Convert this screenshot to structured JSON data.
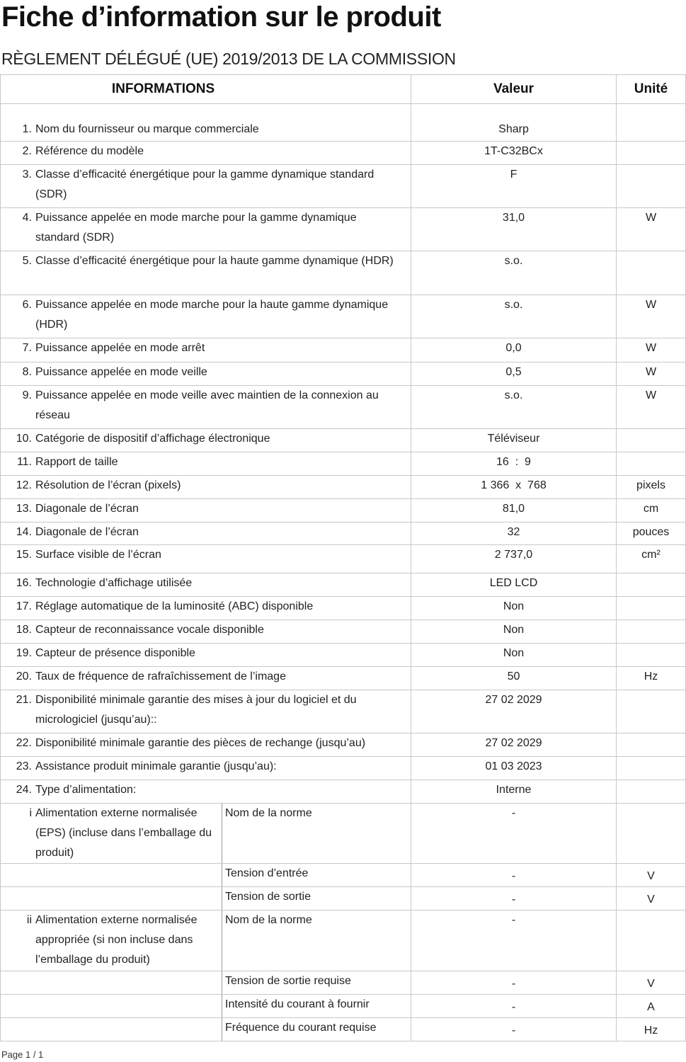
{
  "title": "Fiche d’information sur le produit",
  "subtitle": "RÈGLEMENT DÉLÉGUÉ (UE) 2019/2013 DE LA COMMISSION",
  "table": {
    "headers": {
      "info": "INFORMATIONS",
      "value": "Valeur",
      "unit": "Unité"
    },
    "rows": [
      {
        "num": "1.",
        "label": "Nom du fournisseur ou marque commerciale",
        "value": "Sharp",
        "unit": "",
        "h": 53
      },
      {
        "num": "2.",
        "label": "Référence du modèle",
        "value": "1T-C32BCx",
        "unit": ""
      },
      {
        "num": "3.",
        "label": "Classe d’efficacité énergétique pour la gamme dynamique standard (SDR)",
        "value": "F",
        "unit": ""
      },
      {
        "num": "4.",
        "label": "Puissance appelée en mode marche pour la gamme dynamique standard (SDR)",
        "value": "31,0",
        "unit": "W"
      },
      {
        "num": "5.",
        "label": "Classe d’efficacité énergétique pour la haute gamme dynamique (HDR)",
        "value": "s.o.",
        "unit": ""
      },
      {
        "num": "6.",
        "label": "Puissance appelée en mode marche pour la haute gamme dynamique (HDR)",
        "value": "s.o.",
        "unit": "W"
      },
      {
        "num": "7.",
        "label": "Puissance appelée en mode arrêt",
        "value": "0,0",
        "unit": "W"
      },
      {
        "num": "8.",
        "label": "Puissance appelée en mode veille",
        "value": "0,5",
        "unit": "W"
      },
      {
        "num": "9.",
        "label": "Puissance appelée en mode veille avec maintien de la connexion au réseau",
        "value": "s.o.",
        "unit": "W"
      },
      {
        "num": "10.",
        "label": "Catégorie de dispositif d’affichage électronique",
        "value": "Téléviseur",
        "unit": ""
      },
      {
        "num": "11.",
        "label": "Rapport de taille",
        "value": "16  :  9",
        "unit": ""
      },
      {
        "num": "12.",
        "label": "Résolution de l’écran (pixels)",
        "value": "1 366  x  768",
        "unit": "pixels"
      },
      {
        "num": "13.",
        "label": "Diagonale de l’écran",
        "value": "81,0",
        "unit": "cm"
      },
      {
        "num": "14.",
        "label": "Diagonale de l’écran",
        "value": "32",
        "unit": "pouces"
      },
      {
        "num": "15.",
        "label": "Surface visible de l’écran",
        "value": "2 737,0",
        "unit": "cm²"
      },
      {
        "num": "16.",
        "label": "Technologie d’affichage utilisée",
        "value": "LED LCD",
        "unit": ""
      },
      {
        "num": "17.",
        "label": "Réglage automatique de la luminosité (ABC) disponible",
        "value": "Non",
        "unit": ""
      },
      {
        "num": "18.",
        "label": "Capteur de reconnaissance vocale disponible",
        "value": "Non",
        "unit": ""
      },
      {
        "num": "19.",
        "label": "Capteur de présence disponible",
        "value": "Non",
        "unit": ""
      },
      {
        "num": "20.",
        "label": "Taux de fréquence de rafraîchissement de l’image",
        "value": "50",
        "unit": "Hz"
      },
      {
        "num": "21.",
        "label": "Disponibilité minimale garantie des mises à jour du logiciel et du micrologiciel (jusqu’au)::",
        "value": "27 02 2029",
        "unit": ""
      },
      {
        "num": "22.",
        "label": "Disponibilité minimale garantie des pièces de rechange (jusqu’au)",
        "value": "27 02 2029",
        "unit": ""
      },
      {
        "num": "23.",
        "label": "Assistance produit minimale garantie (jusqu’au):",
        "value": "01 03 2023",
        "unit": ""
      },
      {
        "num": "24.",
        "label": "Type d’alimentation:",
        "value": "Interne",
        "unit": ""
      }
    ],
    "sub_rows": [
      {
        "num": "i",
        "label": "Alimentation externe normalisée (EPS) (incluse dans l’emballage du produit)",
        "sub": "Nom de la norme",
        "value": "-",
        "unit": ""
      },
      {
        "num": "",
        "label": "",
        "sub": "Tension d’entrée",
        "value": "-",
        "unit": "V"
      },
      {
        "num": "",
        "label": "",
        "sub": "Tension de sortie",
        "value": "-",
        "unit": "V"
      },
      {
        "num": "ii",
        "label": "Alimentation externe normalisée appropriée (si non incluse dans l’emballage du produit)",
        "sub": "Nom de la norme",
        "value": "-",
        "unit": ""
      },
      {
        "num": "",
        "label": "",
        "sub": "Tension de sortie requise",
        "value": "-",
        "unit": "V"
      },
      {
        "num": "",
        "label": "",
        "sub": "Intensité du courant à fournir",
        "value": "-",
        "unit": "A"
      },
      {
        "num": "",
        "label": "",
        "sub": "Fréquence du courant requise",
        "value": "-",
        "unit": "Hz"
      }
    ]
  },
  "footer": "Page 1 / 1"
}
